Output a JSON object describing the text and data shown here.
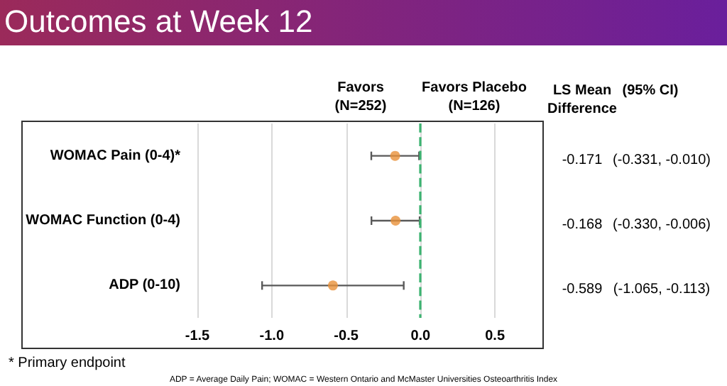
{
  "chart_data": {
    "type": "scatter",
    "title": "Outcomes at Week 12",
    "orientation": "horizontal",
    "categories": [
      "WOMAC Pain (0-4)*",
      "WOMAC Function (0-4)",
      "ADP (0-10)"
    ],
    "values": [
      -0.171,
      -0.168,
      -0.589
    ],
    "errors": [
      [
        -0.331,
        -0.01
      ],
      [
        -0.33,
        -0.006
      ],
      [
        -1.065,
        -0.113
      ]
    ],
    "color": "#e8913a",
    "value_labels": [
      "-0.171",
      "-0.168",
      "-0.589"
    ],
    "xlim": [
      -1.5,
      0.8
    ],
    "xticks": [
      {
        "value": -1.5,
        "label": "-1.5"
      },
      {
        "value": -1.0,
        "label": "-1.0"
      },
      {
        "value": -0.5,
        "label": "-0.5"
      },
      {
        "value": 0,
        "label": "0.0"
      },
      {
        "value": 0.5,
        "label": "0.5"
      }
    ],
    "grid": "x",
    "marker": "circle",
    "ref_lines": [
      {
        "axis": "x",
        "value": 0,
        "color": "#3cb371",
        "line_style": "dashed"
      }
    ],
    "annotations": [
      "Favors",
      "(N=252)",
      "Favors Placebo",
      "(N=126)",
      "LS Mean",
      "Difference",
      "(95% CI)",
      "(-0.331, -0.010)",
      "(-0.330, -0.006)",
      "(-1.065, -0.113)",
      "* Primary endpoint",
      "ADP = Average Daily Pain; WOMAC = Western Ontario and McMaster Universities Osteoarthritis Index"
    ]
  }
}
